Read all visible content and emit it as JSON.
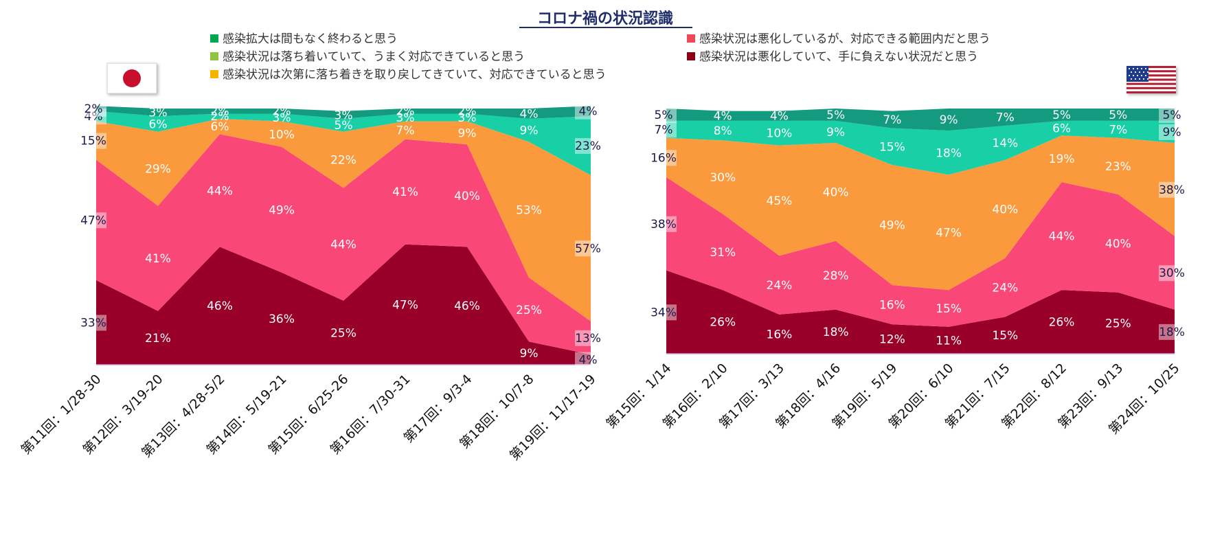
{
  "title": "コロナ禍の状況認識",
  "legend": [
    {
      "key": "s1",
      "label": "感染拡大は間もなく終わると思う",
      "color": "#00a651"
    },
    {
      "key": "s2",
      "label": "感染状況は落ち着いていて、うまく対応できていると思う",
      "color": "#8dc63f"
    },
    {
      "key": "s3",
      "label": "感染状況は次第に落ち着きを取り戻してきていて、対応できていると思う",
      "color": "#f7b500"
    },
    {
      "key": "s4",
      "label": "感染状況は悪化しているが、対応できる範囲内だと思う",
      "color": "#ef4858"
    },
    {
      "key": "s5",
      "label": "感染状況は悪化していて、手に負えない状況だと思う",
      "color": "#8b0015"
    }
  ],
  "flags": {
    "left": "japan-flag",
    "right": "usa-flag"
  },
  "colors": {
    "band_top": "#149a7e",
    "band_green": "#18cfa6",
    "band_orange": "#fb9a3c",
    "band_pink": "#f94878",
    "band_dark": "#98002a"
  },
  "chart_data": [
    {
      "type": "area",
      "stacked": true,
      "country": "Japan",
      "categories": [
        "第11回：1/28-30",
        "第12回：3/19-20",
        "第13回：4/28-5/2",
        "第14回：5/19-21",
        "第15回：6/25-26",
        "第16回：7/30-31",
        "第17回：9/3-4",
        "第18回：10/7-8",
        "第19回：11/17-19"
      ],
      "series": [
        {
          "values": [
            33,
            21,
            46,
            36,
            25,
            47,
            46,
            9,
            4
          ]
        },
        {
          "values": [
            47,
            41,
            44,
            49,
            44,
            41,
            40,
            25,
            13
          ]
        },
        {
          "values": [
            15,
            29,
            6,
            10,
            22,
            7,
            9,
            53,
            57
          ]
        },
        {
          "values": [
            4,
            6,
            2,
            3,
            5,
            3,
            3,
            9,
            23
          ]
        },
        {
          "values": [
            2,
            3,
            2,
            2,
            3,
            2,
            2,
            4,
            4
          ]
        }
      ],
      "label_texts": [
        [
          "33%",
          "21%",
          "46%",
          "36%",
          "25%",
          "47%",
          "46%",
          "9%",
          "4%"
        ],
        [
          "47%",
          "41%",
          "44%",
          "49%",
          "44%",
          "41%",
          "40%",
          "25%",
          "13%"
        ],
        [
          "15%",
          "29%",
          "6%",
          "10%",
          "22%",
          "7%",
          "9%",
          "53%",
          "57%"
        ],
        [
          "4%",
          "6%",
          "2%",
          "3%",
          "5%",
          "3%",
          "3%",
          "9%",
          "23%"
        ],
        [
          "2%",
          "3%",
          "2%",
          "2%",
          "3%",
          "2%",
          "2%",
          "4%",
          "4%"
        ]
      ],
      "ylim": [
        0,
        100
      ],
      "grid": false
    },
    {
      "type": "area",
      "stacked": true,
      "country": "USA",
      "categories": [
        "第15回：1/14",
        "第16回：2/10",
        "第17回：3/13",
        "第18回：4/16",
        "第19回：5/19",
        "第20回：6/10",
        "第21回：7/15",
        "第22回：8/12",
        "第23回：9/13",
        "第24回：10/25"
      ],
      "series": [
        {
          "values": [
            34,
            26,
            16,
            18,
            12,
            11,
            15,
            26,
            25,
            18
          ]
        },
        {
          "values": [
            38,
            31,
            24,
            28,
            16,
            15,
            24,
            44,
            40,
            30
          ]
        },
        {
          "values": [
            16,
            30,
            45,
            40,
            49,
            47,
            40,
            19,
            23,
            38
          ]
        },
        {
          "values": [
            7,
            8,
            10,
            9,
            15,
            18,
            14,
            6,
            7,
            9
          ]
        },
        {
          "values": [
            5,
            4,
            4,
            5,
            7,
            9,
            7,
            5,
            5,
            5
          ]
        }
      ],
      "label_texts": [
        [
          "34%",
          "26%",
          "16%",
          "18%",
          "12%",
          "11%",
          "15%",
          "26%",
          "25%",
          "18%"
        ],
        [
          "38%",
          "31%",
          "24%",
          "28%",
          "16%",
          "15%",
          "24%",
          "44%",
          "40%",
          "30%"
        ],
        [
          "16%",
          "30%",
          "45%",
          "40%",
          "49%",
          "47%",
          "40%",
          "19%",
          "23%",
          "38%"
        ],
        [
          "7%",
          "8%",
          "10%",
          "9%",
          "15%",
          "18%",
          "14%",
          "6%",
          "7%",
          "9%"
        ],
        [
          "5%",
          "4%",
          "4%",
          "5%",
          "7%",
          "9%",
          "7%",
          "5%",
          "5%",
          "5%"
        ]
      ],
      "ylim": [
        0,
        100
      ],
      "grid": false
    }
  ]
}
